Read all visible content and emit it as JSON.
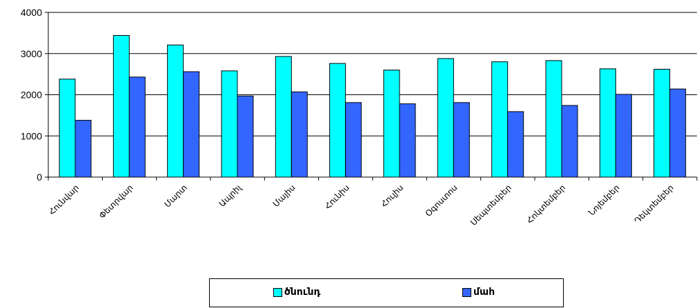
{
  "chart_data": {
    "type": "bar",
    "categories": [
      "Հունվար",
      "Փետրվար",
      "Մարտ",
      "Ապրիլ",
      "Մայիս",
      "Հունիս",
      "Հուլիս",
      "Օգոստոս",
      "Սեպտեմբեր",
      "Հոկտեմբեր",
      "Նոյեմբեր",
      "Դեկտեմբեր"
    ],
    "series": [
      {
        "name": "ծնունդ",
        "color": "#00ffff",
        "values": [
          2380,
          3440,
          3210,
          2580,
          2930,
          2760,
          2600,
          2880,
          2800,
          2830,
          2630,
          2620
        ]
      },
      {
        "name": "մահ",
        "color": "#3366ff",
        "values": [
          1380,
          2430,
          2560,
          1970,
          2070,
          1810,
          1780,
          1810,
          1590,
          1740,
          2010,
          2140
        ]
      }
    ],
    "yticks": [
      "0",
      "1000",
      "2000",
      "3000",
      "4000"
    ],
    "ylim": [
      0,
      4000
    ],
    "grid": true,
    "legend_position": "bottom"
  }
}
